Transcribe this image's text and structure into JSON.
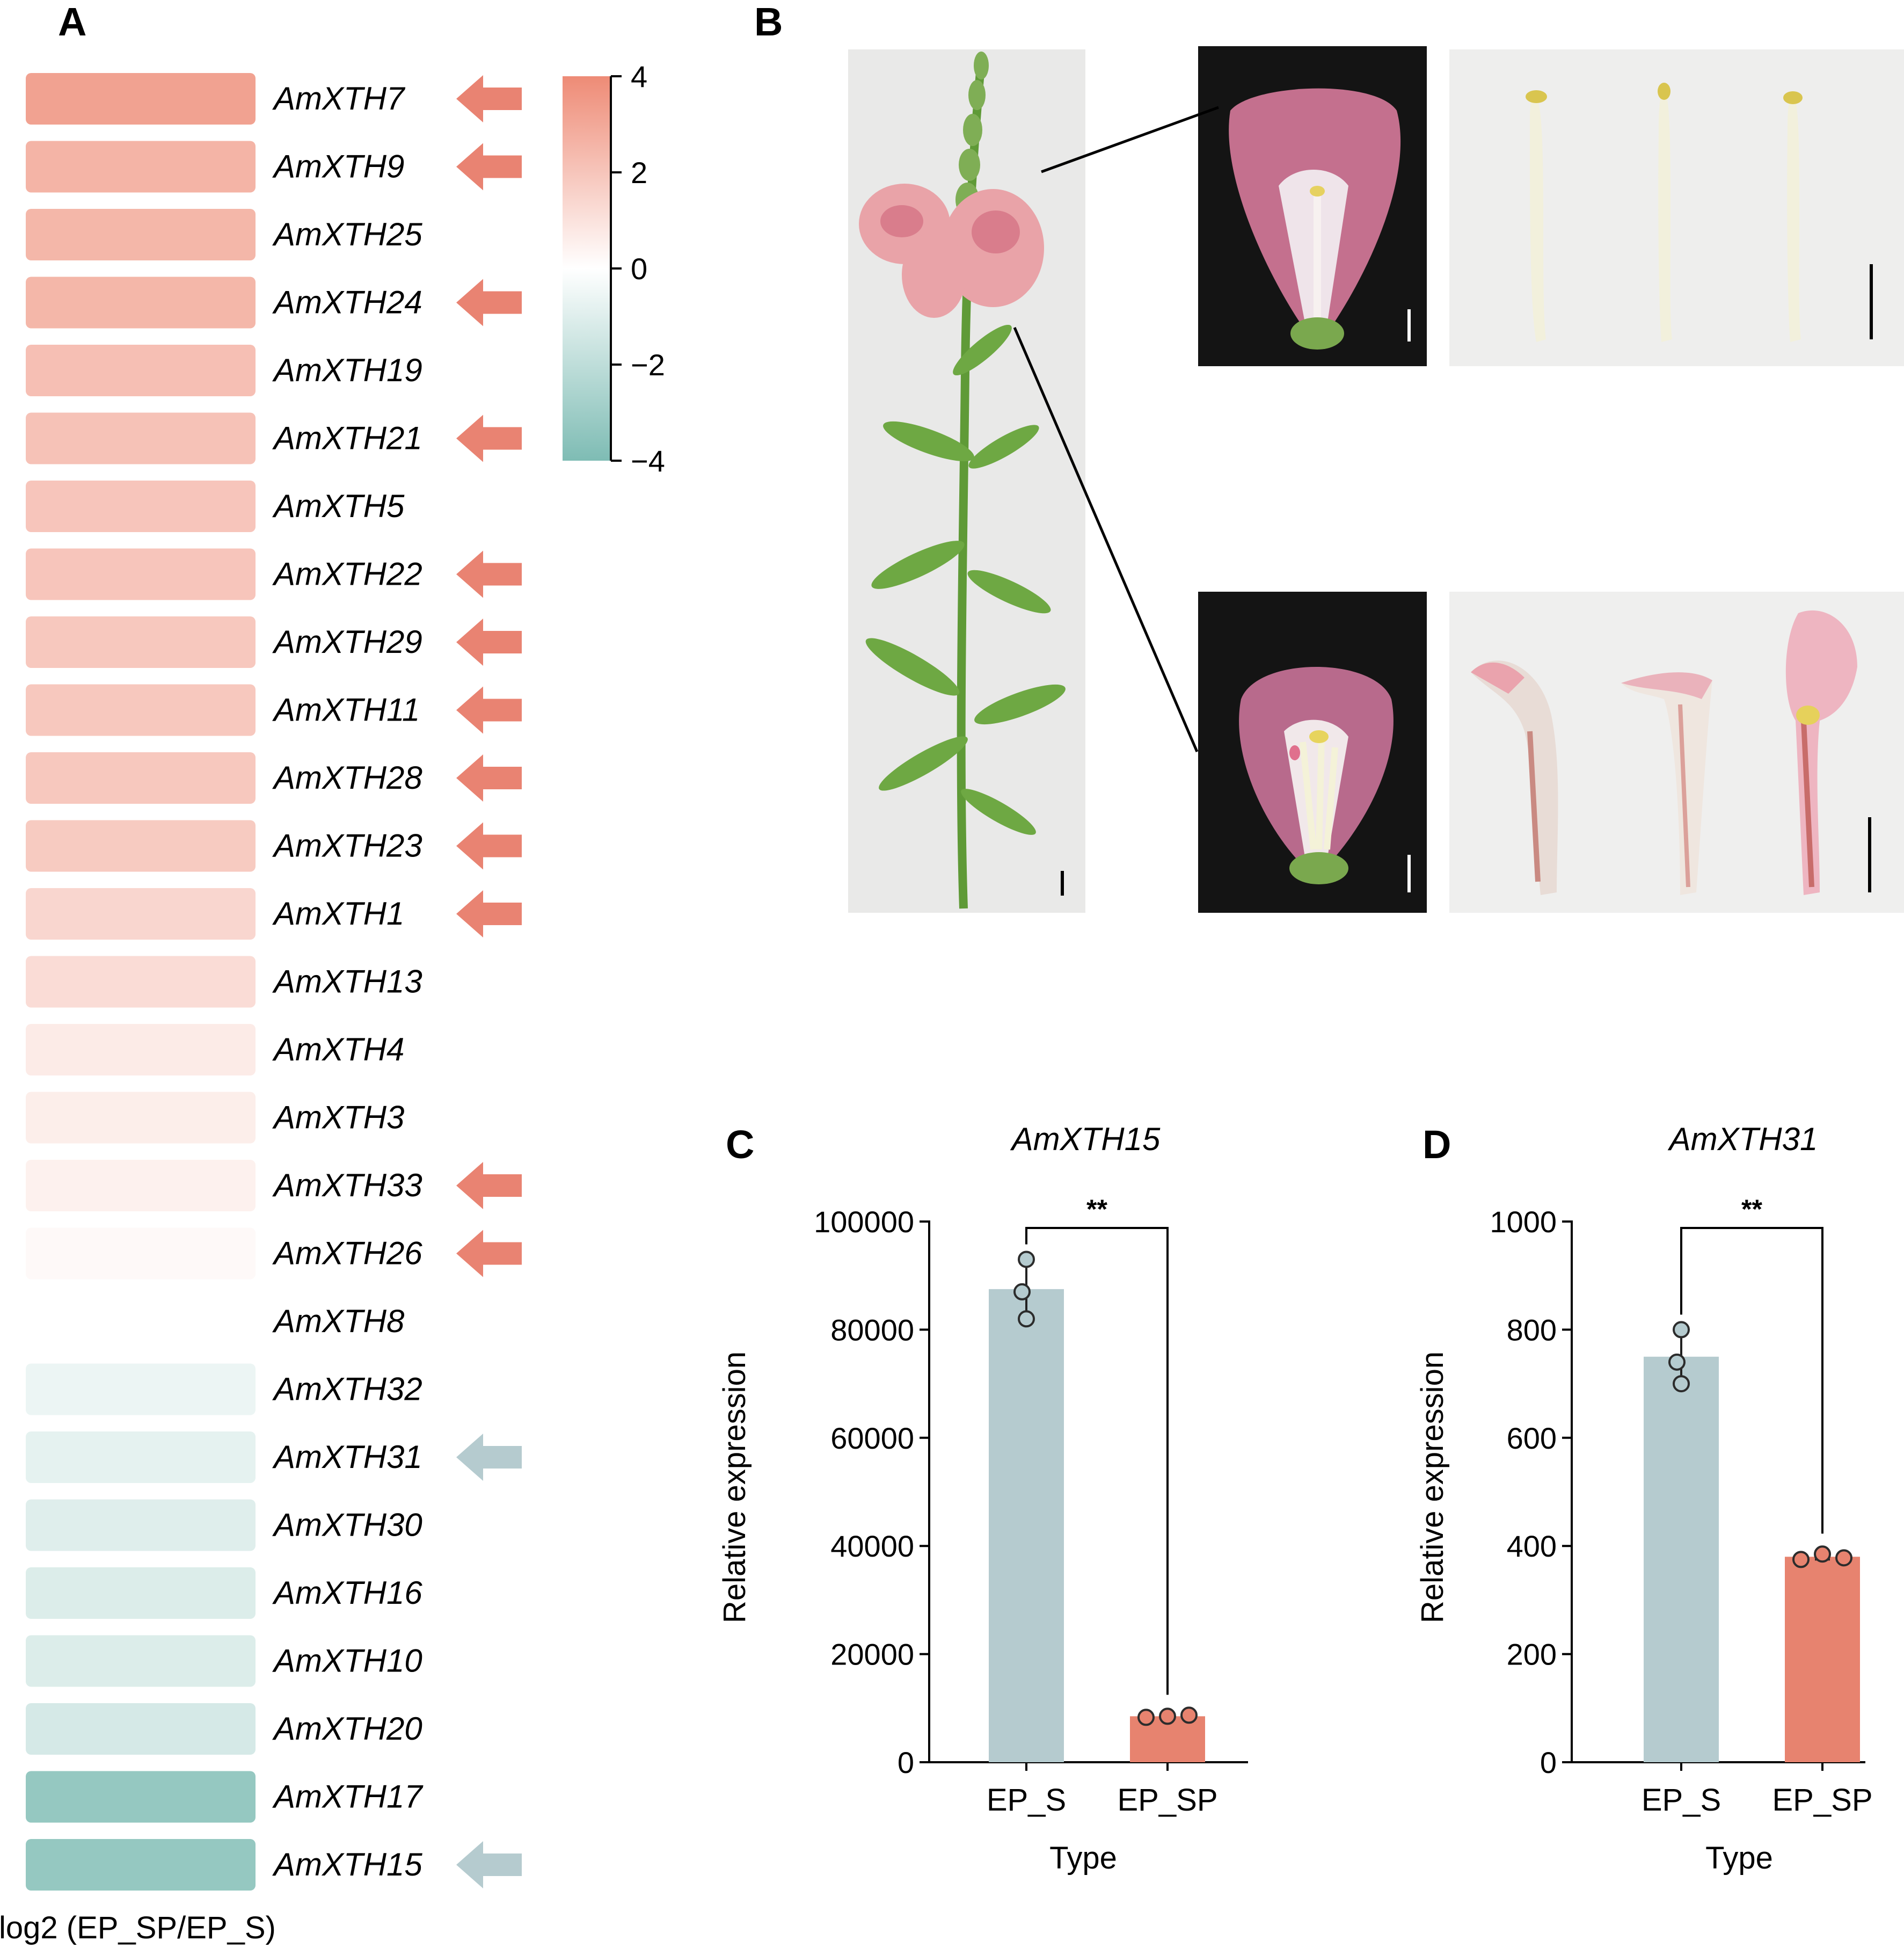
{
  "panel_labels": {
    "a": "A",
    "b": "B",
    "c": "C",
    "d": "D"
  },
  "colors": {
    "up_strong": "#ee8b76",
    "neutral": "#ffffff",
    "down_strong": "#7ebcb4",
    "arrow_up": "#e98372",
    "arrow_down": "#b5cbcf",
    "bar_ep_s": "#b5cbcf",
    "bar_ep_sp": "#e7836f",
    "photo_bg_light": "#e9e9e8",
    "photo_bg_dark": "#141414"
  },
  "heatmap": {
    "footer_label": "log2 (EP_SP/EP_S)",
    "colorbar_ticks": [
      "4",
      "2",
      "0",
      "−2",
      "−4"
    ],
    "colorbar_range": [
      -4,
      4
    ],
    "rows": [
      {
        "gene": "AmXTH7",
        "value": 3.2,
        "arrow": "up"
      },
      {
        "gene": "AmXTH9",
        "value": 2.6,
        "arrow": "up"
      },
      {
        "gene": "AmXTH25",
        "value": 2.5,
        "arrow": ""
      },
      {
        "gene": "AmXTH24",
        "value": 2.5,
        "arrow": "up"
      },
      {
        "gene": "AmXTH19",
        "value": 2.2,
        "arrow": ""
      },
      {
        "gene": "AmXTH21",
        "value": 2.1,
        "arrow": "up"
      },
      {
        "gene": "AmXTH5",
        "value": 2.0,
        "arrow": ""
      },
      {
        "gene": "AmXTH22",
        "value": 2.0,
        "arrow": "up"
      },
      {
        "gene": "AmXTH29",
        "value": 1.9,
        "arrow": "up"
      },
      {
        "gene": "AmXTH11",
        "value": 1.9,
        "arrow": "up"
      },
      {
        "gene": "AmXTH28",
        "value": 1.9,
        "arrow": "up"
      },
      {
        "gene": "AmXTH23",
        "value": 1.8,
        "arrow": "up"
      },
      {
        "gene": "AmXTH1",
        "value": 1.4,
        "arrow": "up"
      },
      {
        "gene": "AmXTH13",
        "value": 1.2,
        "arrow": ""
      },
      {
        "gene": "AmXTH4",
        "value": 0.7,
        "arrow": ""
      },
      {
        "gene": "AmXTH3",
        "value": 0.6,
        "arrow": ""
      },
      {
        "gene": "AmXTH33",
        "value": 0.5,
        "arrow": "up"
      },
      {
        "gene": "AmXTH26",
        "value": 0.2,
        "arrow": "up"
      },
      {
        "gene": "AmXTH8",
        "value": 0.0,
        "arrow": ""
      },
      {
        "gene": "AmXTH32",
        "value": -0.6,
        "arrow": ""
      },
      {
        "gene": "AmXTH31",
        "value": -0.8,
        "arrow": "down"
      },
      {
        "gene": "AmXTH30",
        "value": -1.0,
        "arrow": ""
      },
      {
        "gene": "AmXTH16",
        "value": -1.1,
        "arrow": ""
      },
      {
        "gene": "AmXTH10",
        "value": -1.1,
        "arrow": ""
      },
      {
        "gene": "AmXTH20",
        "value": -1.3,
        "arrow": ""
      },
      {
        "gene": "AmXTH17",
        "value": -3.3,
        "arrow": ""
      },
      {
        "gene": "AmXTH15",
        "value": -3.3,
        "arrow": "down"
      }
    ]
  },
  "chart_data": [
    {
      "type": "bar",
      "title": "AmXTH15",
      "xlabel": "Type",
      "ylabel": "Relative expression",
      "categories": [
        "EP_S",
        "EP_SP"
      ],
      "values": [
        87500,
        8500
      ],
      "points": [
        [
          93000,
          87000,
          82000
        ],
        [
          8300,
          8500,
          8700
        ]
      ],
      "ylim": [
        0,
        100000
      ],
      "yticks": [
        "0",
        "20000",
        "40000",
        "60000",
        "80000",
        "100000"
      ],
      "yticks_values": [
        0,
        20000,
        40000,
        60000,
        80000,
        100000
      ],
      "significance": "**"
    },
    {
      "type": "bar",
      "title": "AmXTH31",
      "xlabel": "Type",
      "ylabel": "Relative expression",
      "categories": [
        "EP_S",
        "EP_SP"
      ],
      "values": [
        750,
        380
      ],
      "points": [
        [
          800,
          740,
          700
        ],
        [
          375,
          385,
          378
        ]
      ],
      "ylim": [
        0,
        1000
      ],
      "yticks": [
        "0",
        "200",
        "400",
        "600",
        "800",
        "1000"
      ],
      "yticks_values": [
        0,
        200,
        400,
        600,
        800,
        1000
      ],
      "significance": "**"
    }
  ]
}
